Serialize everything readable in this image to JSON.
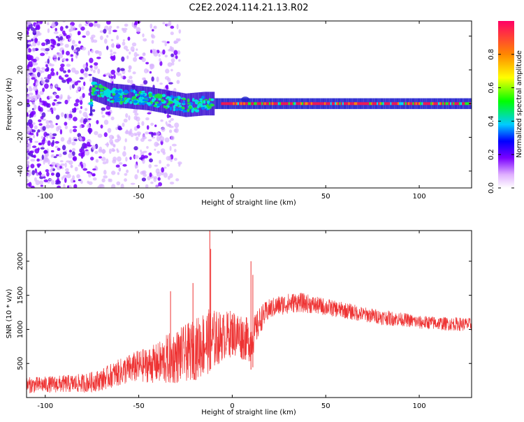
{
  "title": "C2E2.2024.114.21.13.R02",
  "chart_data": [
    {
      "type": "heatmap",
      "xlabel": "Height of straight line (km)",
      "ylabel": "Frequency (Hz)",
      "xlim": [
        -110,
        128
      ],
      "ylim": [
        -50,
        49
      ],
      "x_ticks": [
        -100,
        -50,
        0,
        50,
        100
      ],
      "y_ticks": [
        -40,
        -20,
        0,
        20,
        40
      ],
      "colorbar": {
        "label": "Normalized spectral amplitude",
        "range": [
          0.0,
          1.0
        ],
        "ticks": [
          0.0,
          0.2,
          0.4,
          0.6,
          0.8
        ],
        "colors": [
          "#ffffff",
          "#e0b0ff",
          "#7a00ff",
          "#0000ff",
          "#00ccff",
          "#00ff00",
          "#ffff00",
          "#ff8800",
          "#ff0066"
        ]
      },
      "trace": [
        {
          "x": -75,
          "f": 9
        },
        {
          "x": -65,
          "f": 5
        },
        {
          "x": -55,
          "f": 4
        },
        {
          "x": -45,
          "f": 3
        },
        {
          "x": -35,
          "f": 1
        },
        {
          "x": -25,
          "f": -1
        },
        {
          "x": -15,
          "f": 0
        },
        {
          "x": 0,
          "f": 0
        },
        {
          "x": 50,
          "f": 0
        },
        {
          "x": 128,
          "f": 0
        }
      ],
      "description_noise_region_x": [
        -110,
        -28
      ]
    },
    {
      "type": "line",
      "xlabel": "Height of straight line (km)",
      "ylabel": "SNR (10 * v/v)",
      "xlim": [
        -110,
        128
      ],
      "ylim": [
        0,
        2450
      ],
      "x_ticks": [
        -100,
        -50,
        0,
        50,
        100
      ],
      "y_ticks": [
        500,
        1000,
        1500,
        2000
      ],
      "series": [
        {
          "name": "SNR",
          "color": "#ee3333",
          "x": [
            -110,
            -100,
            -90,
            -80,
            -75,
            -70,
            -65,
            -60,
            -55,
            -50,
            -45,
            -40,
            -35,
            -30,
            -25,
            -20,
            -15,
            -10,
            -5,
            0,
            5,
            10,
            15,
            20,
            25,
            30,
            35,
            40,
            45,
            50,
            55,
            60,
            65,
            70,
            75,
            80,
            85,
            90,
            95,
            100,
            105,
            110,
            115,
            120,
            128
          ],
          "values": [
            180,
            190,
            200,
            210,
            230,
            260,
            320,
            370,
            420,
            460,
            480,
            500,
            550,
            600,
            650,
            700,
            800,
            850,
            900,
            950,
            900,
            820,
            1150,
            1300,
            1350,
            1380,
            1400,
            1380,
            1350,
            1330,
            1300,
            1280,
            1250,
            1220,
            1200,
            1180,
            1160,
            1150,
            1130,
            1100,
            1100,
            1090,
            1080,
            1080,
            1070
          ],
          "spread": [
            120,
            120,
            130,
            140,
            150,
            160,
            180,
            200,
            220,
            240,
            260,
            300,
            380,
            400,
            420,
            450,
            500,
            450,
            350,
            350,
            350,
            300,
            200,
            150,
            150,
            150,
            150,
            140,
            130,
            130,
            120,
            120,
            120,
            110,
            110,
            110,
            110,
            100,
            100,
            100,
            100,
            100,
            100,
            100,
            100
          ],
          "spikes": [
            {
              "x": -33,
              "y": 1560
            },
            {
              "x": -21,
              "y": 1680
            },
            {
              "x": -12,
              "y": 2450
            },
            {
              "x": -11.5,
              "y": 2180
            },
            {
              "x": 10,
              "y": 2000
            },
            {
              "x": 11,
              "y": 1800
            }
          ]
        }
      ]
    }
  ]
}
